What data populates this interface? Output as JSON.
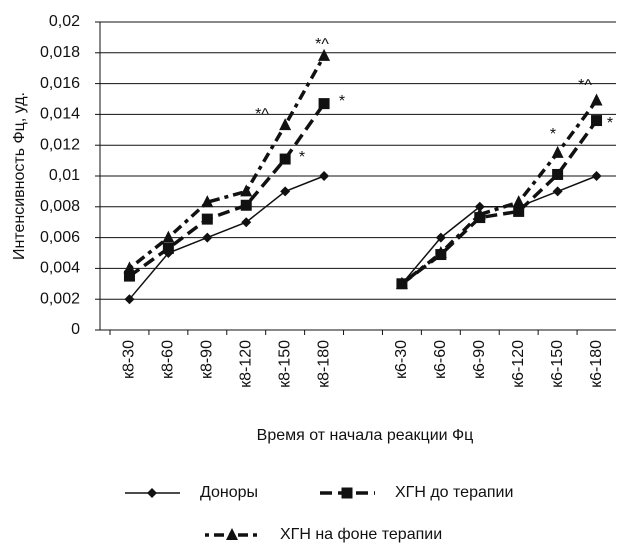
{
  "chart_data": {
    "type": "line",
    "y_label": "Интенсивность Фц, уд.",
    "x_label": "Время от начала реакции Фц",
    "categories": [
      "к8-30",
      "к8-60",
      "к8-90",
      "к8-120",
      "к8-150",
      "к8-180",
      null,
      "к6-30",
      "к6-60",
      "к6-90",
      "к6-120",
      "к6-150",
      "к6-180"
    ],
    "series": [
      {
        "name": "Доноры",
        "color": "#111111",
        "marker": "diamond",
        "values": [
          0.002,
          0.005,
          0.006,
          0.007,
          0.009,
          0.01,
          null,
          0.003,
          0.006,
          0.008,
          0.008,
          0.009,
          0.01
        ]
      },
      {
        "name": "ХГН до терапии",
        "color": "#111111",
        "marker": "square",
        "values": [
          0.0035,
          0.0053,
          0.0072,
          0.0081,
          0.0111,
          0.0147,
          null,
          0.003,
          0.0049,
          0.0073,
          0.0077,
          0.0101,
          0.0136
        ]
      },
      {
        "name": "ХГН на фоне терапии",
        "color": "#111111",
        "marker": "triangle",
        "values": [
          0.004,
          0.006,
          0.0083,
          0.009,
          0.0133,
          0.0178,
          null,
          0.003,
          0.005,
          0.0075,
          0.0083,
          0.0115,
          0.0149
        ]
      }
    ],
    "annotations": [
      "*",
      "*^",
      "*^",
      "*",
      "*",
      "*^",
      "*"
    ],
    "ylim": [
      0,
      0.02
    ],
    "yticks": [
      0,
      {
        "value": 0.002,
        "label": "0,002"
      },
      {
        "value": 0.004,
        "label": "0,004"
      },
      {
        "value": 0.006,
        "label": "0,006"
      },
      {
        "value": 0.008,
        "label": "0,008"
      },
      {
        "value": 0.01,
        "label": "0,01"
      },
      {
        "value": 0.012,
        "label": "0,012"
      },
      {
        "value": 0.014,
        "label": "0,014"
      },
      {
        "value": 0.016,
        "label": "0,016"
      },
      {
        "value": 0.018,
        "label": "0,018"
      },
      {
        "value": 0.02,
        "label": "0,02"
      }
    ],
    "grid": true
  }
}
